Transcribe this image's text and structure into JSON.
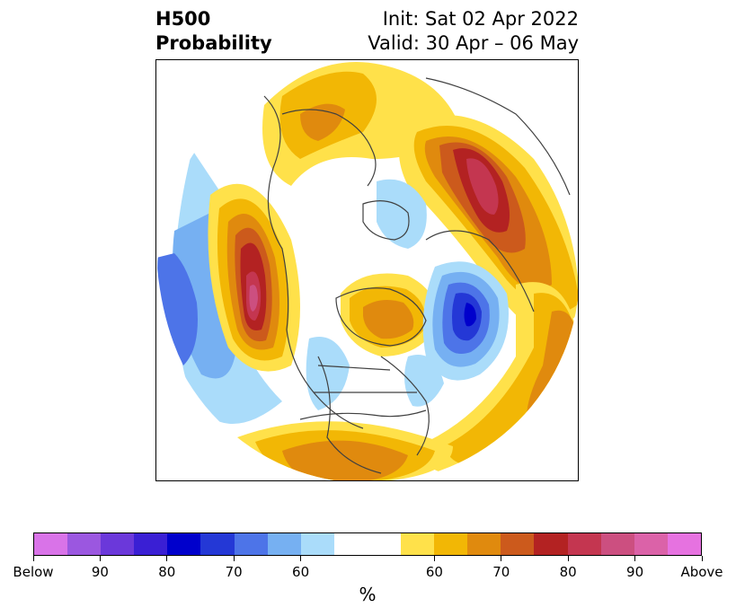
{
  "header": {
    "title_line1": "H500",
    "title_line2": "Probability",
    "init_text": "Init: Sat 02 Apr 2022",
    "valid_text": "Valid: 30 Apr – 06 May"
  },
  "colorbar": {
    "unit": "%",
    "colors": [
      "#d973e8",
      "#9b57e0",
      "#6b38da",
      "#3a1fd4",
      "#0000cc",
      "#2438d6",
      "#4d74e8",
      "#76b0f2",
      "#aadcfa",
      "#ffffff",
      "#ffe14a",
      "#f2b705",
      "#e08a0e",
      "#cc5a1c",
      "#b32222",
      "#c43650",
      "#cc4f80",
      "#db62a8",
      "#e672e0"
    ],
    "tick_labels": [
      "Below",
      "90",
      "80",
      "70",
      "60",
      "60",
      "70",
      "80",
      "90",
      "Above"
    ]
  }
}
